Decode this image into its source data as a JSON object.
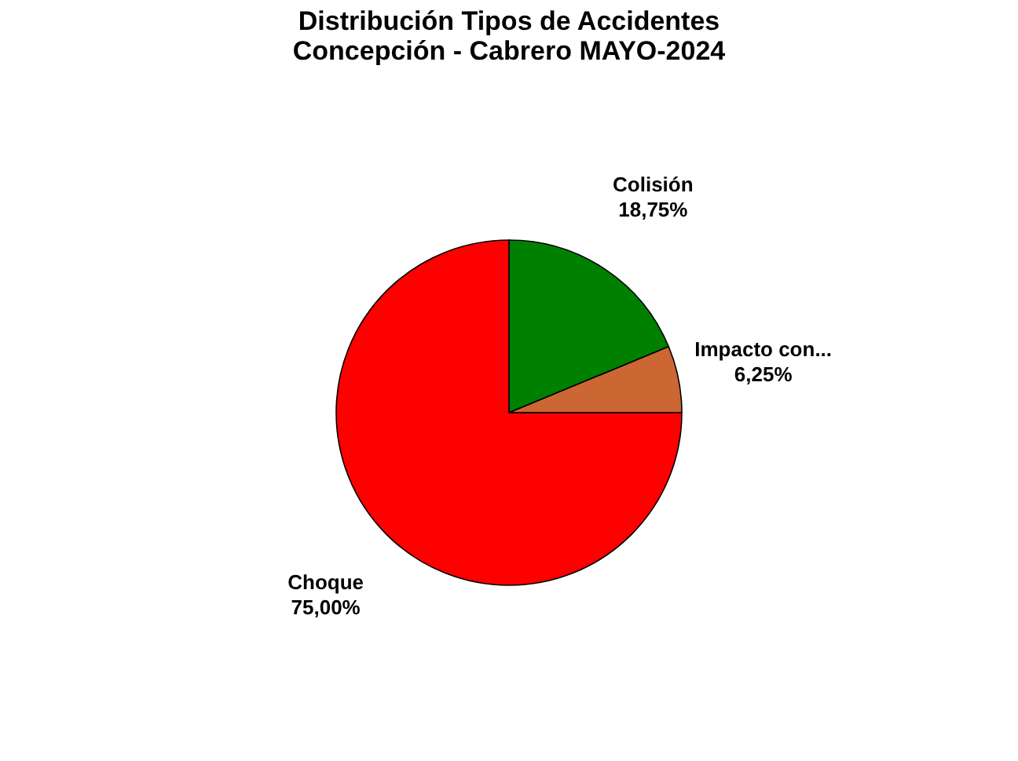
{
  "chart_data": {
    "type": "pie",
    "title": [
      "Distribución Tipos de Accidentes",
      "Concepción - Cabrero MAYO-2024"
    ],
    "categories": [
      "Colisión",
      "Impacto con...",
      "Choque"
    ],
    "values": [
      18.75,
      6.25,
      75
    ],
    "colors": [
      "#008000",
      "#cc6633",
      "#ff0000"
    ],
    "value_labels": [
      "18,75%",
      "6,25%",
      "75,00%"
    ],
    "legend": false
  }
}
